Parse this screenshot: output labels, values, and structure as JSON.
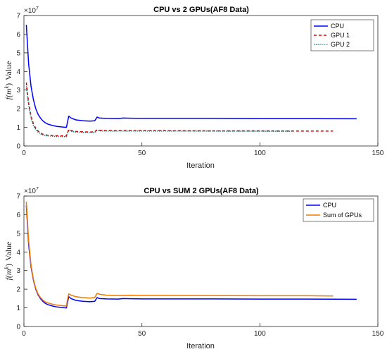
{
  "chart_data": [
    {
      "type": "line",
      "title": "CPU vs 2 GPUs(AF8 Data)",
      "xlabel": "Iteration",
      "ylabel_text": "Value",
      "ylabel_func": "f(m",
      "ylabel_sup": "k",
      "ylabel_close": ")",
      "y_exponent_label": "×10",
      "y_exponent_power": "7",
      "xlim": [
        0,
        150
      ],
      "ylim": [
        0,
        7
      ],
      "xticks": [
        "0",
        "50",
        "100",
        "150"
      ],
      "yticks": [
        "0",
        "1",
        "2",
        "3",
        "4",
        "5",
        "6",
        "7"
      ],
      "legend_position": "top-right",
      "series": [
        {
          "name": "CPU",
          "color": "#0000ff",
          "dash": "solid",
          "x": [
            1,
            2,
            3,
            4,
            5,
            6,
            7,
            8,
            9,
            10,
            12,
            14,
            16,
            18,
            18.5,
            19,
            20,
            22,
            25,
            28,
            30,
            31,
            32,
            35,
            40,
            42,
            45,
            50,
            60,
            80,
            100,
            120,
            141
          ],
          "y": [
            6.5,
            4.4,
            3.2,
            2.5,
            2.0,
            1.7,
            1.5,
            1.35,
            1.25,
            1.18,
            1.1,
            1.05,
            1.02,
            1.0,
            1.3,
            1.6,
            1.5,
            1.4,
            1.35,
            1.33,
            1.35,
            1.55,
            1.5,
            1.48,
            1.47,
            1.5,
            1.49,
            1.48,
            1.48,
            1.48,
            1.47,
            1.47,
            1.46
          ]
        },
        {
          "name": "GPU 1",
          "color": "#e00000",
          "dash": "dashed",
          "x": [
            1,
            2,
            3,
            4,
            5,
            6,
            7,
            8,
            9,
            10,
            12,
            14,
            16,
            18,
            18.5,
            19,
            20,
            22,
            25,
            28,
            30,
            31,
            32,
            35,
            40,
            50,
            60,
            80,
            100,
            120,
            131
          ],
          "y": [
            3.4,
            2.3,
            1.6,
            1.2,
            0.95,
            0.8,
            0.7,
            0.63,
            0.6,
            0.58,
            0.56,
            0.55,
            0.54,
            0.54,
            0.72,
            0.88,
            0.82,
            0.78,
            0.76,
            0.75,
            0.76,
            0.87,
            0.84,
            0.83,
            0.82,
            0.82,
            0.82,
            0.81,
            0.81,
            0.8,
            0.8
          ]
        },
        {
          "name": "GPU 2",
          "color": "#007a6e",
          "dash": "dotted",
          "x": [
            1,
            2,
            3,
            4,
            5,
            6,
            7,
            8,
            9,
            10,
            12,
            14,
            16,
            18,
            18.5,
            19,
            20,
            22,
            25,
            28,
            30,
            31,
            32,
            35,
            40,
            50,
            60,
            80,
            100,
            114
          ],
          "y": [
            3.2,
            2.2,
            1.5,
            1.1,
            0.88,
            0.74,
            0.65,
            0.59,
            0.56,
            0.54,
            0.52,
            0.51,
            0.5,
            0.5,
            0.68,
            0.84,
            0.78,
            0.75,
            0.73,
            0.72,
            0.73,
            0.84,
            0.81,
            0.8,
            0.8,
            0.8,
            0.8,
            0.8,
            0.79,
            0.79
          ]
        }
      ]
    },
    {
      "type": "line",
      "title": "CPU vs SUM 2 GPUs(AF8 Data)",
      "xlabel": "Iteration",
      "ylabel_text": "Value",
      "ylabel_func": "f(m",
      "ylabel_sup": "k",
      "ylabel_close": ")",
      "y_exponent_label": "×10",
      "y_exponent_power": "7",
      "xlim": [
        0,
        150
      ],
      "ylim": [
        0,
        7
      ],
      "xticks": [
        "0",
        "50",
        "100",
        "150"
      ],
      "yticks": [
        "0",
        "1",
        "2",
        "3",
        "4",
        "5",
        "6",
        "7"
      ],
      "legend_position": "top-right",
      "series": [
        {
          "name": "CPU",
          "color": "#0000ff",
          "dash": "solid",
          "x": [
            1,
            2,
            3,
            4,
            5,
            6,
            7,
            8,
            9,
            10,
            12,
            14,
            16,
            18,
            18.5,
            19,
            20,
            22,
            25,
            28,
            30,
            31,
            32,
            35,
            40,
            42,
            45,
            50,
            60,
            80,
            100,
            120,
            141
          ],
          "y": [
            6.5,
            4.4,
            3.2,
            2.5,
            2.0,
            1.7,
            1.5,
            1.35,
            1.25,
            1.18,
            1.1,
            1.05,
            1.02,
            1.0,
            1.3,
            1.6,
            1.5,
            1.4,
            1.35,
            1.33,
            1.35,
            1.55,
            1.5,
            1.48,
            1.47,
            1.5,
            1.49,
            1.48,
            1.48,
            1.48,
            1.47,
            1.47,
            1.46
          ]
        },
        {
          "name": "Sum of GPUs",
          "color": "#f07800",
          "dash": "solid",
          "x": [
            1,
            2,
            3,
            4,
            5,
            6,
            7,
            8,
            9,
            10,
            12,
            14,
            16,
            18,
            18.5,
            19,
            20,
            22,
            25,
            28,
            30,
            31,
            32,
            35,
            40,
            45,
            50,
            60,
            80,
            100,
            120,
            131
          ],
          "y": [
            6.7,
            4.6,
            3.3,
            2.55,
            2.05,
            1.75,
            1.55,
            1.42,
            1.33,
            1.27,
            1.2,
            1.15,
            1.12,
            1.1,
            1.45,
            1.75,
            1.68,
            1.6,
            1.55,
            1.53,
            1.55,
            1.78,
            1.73,
            1.68,
            1.66,
            1.68,
            1.67,
            1.67,
            1.66,
            1.65,
            1.65,
            1.64
          ]
        }
      ]
    }
  ]
}
